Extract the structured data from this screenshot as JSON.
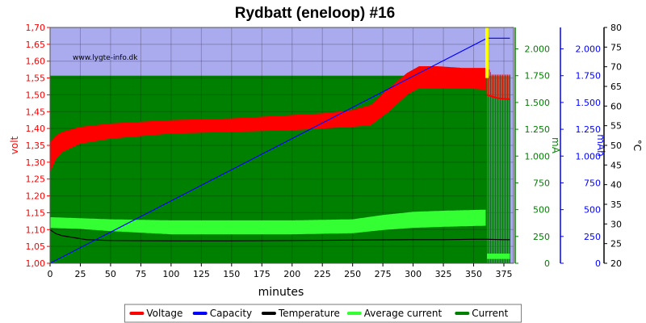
{
  "chart_data": {
    "type": "line",
    "title": "Rydbatt (eneloop) #16",
    "watermark": "www.lygte-info.dk",
    "xlabel": "minutes",
    "xlim": [
      0,
      383
    ],
    "xticks": [
      "0",
      "25",
      "50",
      "75",
      "100",
      "125",
      "150",
      "175",
      "200",
      "225",
      "250",
      "275",
      "300",
      "325",
      "350",
      "375"
    ],
    "axes": {
      "volt": {
        "label": "volt",
        "color": "#ff0000",
        "lim": [
          1.0,
          1.7
        ],
        "ticks": [
          "1,00",
          "1,05",
          "1,10",
          "1,15",
          "1,20",
          "1,25",
          "1,30",
          "1,35",
          "1,40",
          "1,45",
          "1,50",
          "1,55",
          "1,60",
          "1,65",
          "1,70"
        ]
      },
      "mA": {
        "label": "mA",
        "color": "#008000",
        "lim": [
          0,
          2200
        ],
        "ticks": [
          "0",
          "250",
          "500",
          "750",
          "1.000",
          "1.250",
          "1.500",
          "1.750",
          "2.000"
        ]
      },
      "mAh": {
        "label": "mAh",
        "color": "#0000ff",
        "lim": [
          0,
          2200
        ],
        "ticks": [
          "0",
          "250",
          "500",
          "750",
          "1.000",
          "1.250",
          "1.500",
          "1.750",
          "2.000"
        ]
      },
      "temp": {
        "label": "°C",
        "color": "#000000",
        "lim": [
          20,
          80
        ],
        "ticks": [
          "20",
          "25",
          "30",
          "35",
          "40",
          "45",
          "50",
          "55",
          "60",
          "65",
          "70",
          "75",
          "80"
        ]
      }
    },
    "background": {
      "upper_color": "#aaaaee",
      "lower_color": "#008000",
      "lower_top_mA": 1750,
      "end_minute": 361
    },
    "charge_end_marker": {
      "minute": 361,
      "color": "#ffff00"
    },
    "series": [
      {
        "name": "Voltage",
        "color": "#ff0000",
        "axis": "volt",
        "x": [
          0,
          5,
          10,
          25,
          50,
          100,
          150,
          200,
          225,
          250,
          265,
          280,
          295,
          305,
          320,
          340,
          360
        ],
        "y_low": [
          1.27,
          1.31,
          1.33,
          1.355,
          1.37,
          1.385,
          1.39,
          1.395,
          1.4,
          1.405,
          1.41,
          1.45,
          1.5,
          1.52,
          1.52,
          1.52,
          1.515
        ],
        "y_high": [
          1.36,
          1.38,
          1.39,
          1.405,
          1.415,
          1.425,
          1.43,
          1.44,
          1.445,
          1.455,
          1.47,
          1.52,
          1.565,
          1.585,
          1.585,
          1.58,
          1.58
        ],
        "after_x": [
          361,
          365,
          370,
          375,
          380
        ],
        "after_low": [
          1.5,
          1.495,
          1.49,
          1.488,
          1.487
        ],
        "after_high": [
          1.59,
          1.56,
          1.56,
          1.56,
          1.56
        ]
      },
      {
        "name": "Capacity",
        "color": "#0000ff",
        "axis": "mAh",
        "x": [
          0,
          361,
          380
        ],
        "y": [
          0,
          2100,
          2100
        ]
      },
      {
        "name": "Temperature",
        "color": "#000000",
        "axis": "temp",
        "x": [
          0,
          5,
          10,
          20,
          30,
          50,
          100,
          150,
          200,
          250,
          300,
          325,
          350,
          361,
          375,
          380
        ],
        "y": [
          28.5,
          27.5,
          27,
          26.5,
          26,
          25.8,
          25.7,
          25.7,
          25.8,
          25.9,
          26,
          26,
          26.1,
          26.1,
          26.0,
          26.0
        ]
      },
      {
        "name": "Average current",
        "color": "#33ff33",
        "axis": "mA",
        "x": [
          0,
          25,
          50,
          100,
          150,
          200,
          250,
          275,
          300,
          325,
          360
        ],
        "y_low": [
          330,
          320,
          300,
          270,
          270,
          270,
          280,
          310,
          330,
          340,
          350
        ],
        "y_high": [
          430,
          420,
          410,
          400,
          400,
          400,
          410,
          450,
          480,
          490,
          500
        ],
        "after_x": [
          361,
          380
        ],
        "after_low": [
          40,
          40
        ],
        "after_high": [
          90,
          90
        ]
      },
      {
        "name": "Current",
        "color": "#008000",
        "axis": "mA",
        "x": [
          0,
          361
        ],
        "y": [
          1750,
          1750
        ],
        "pulse_start": 361,
        "pulse_end": 380,
        "pulse_high": 1750,
        "pulse_low": 0
      }
    ],
    "legend": {
      "placement": "bottom-center",
      "entries": [
        "Voltage",
        "Capacity",
        "Temperature",
        "Average current",
        "Current"
      ]
    }
  }
}
